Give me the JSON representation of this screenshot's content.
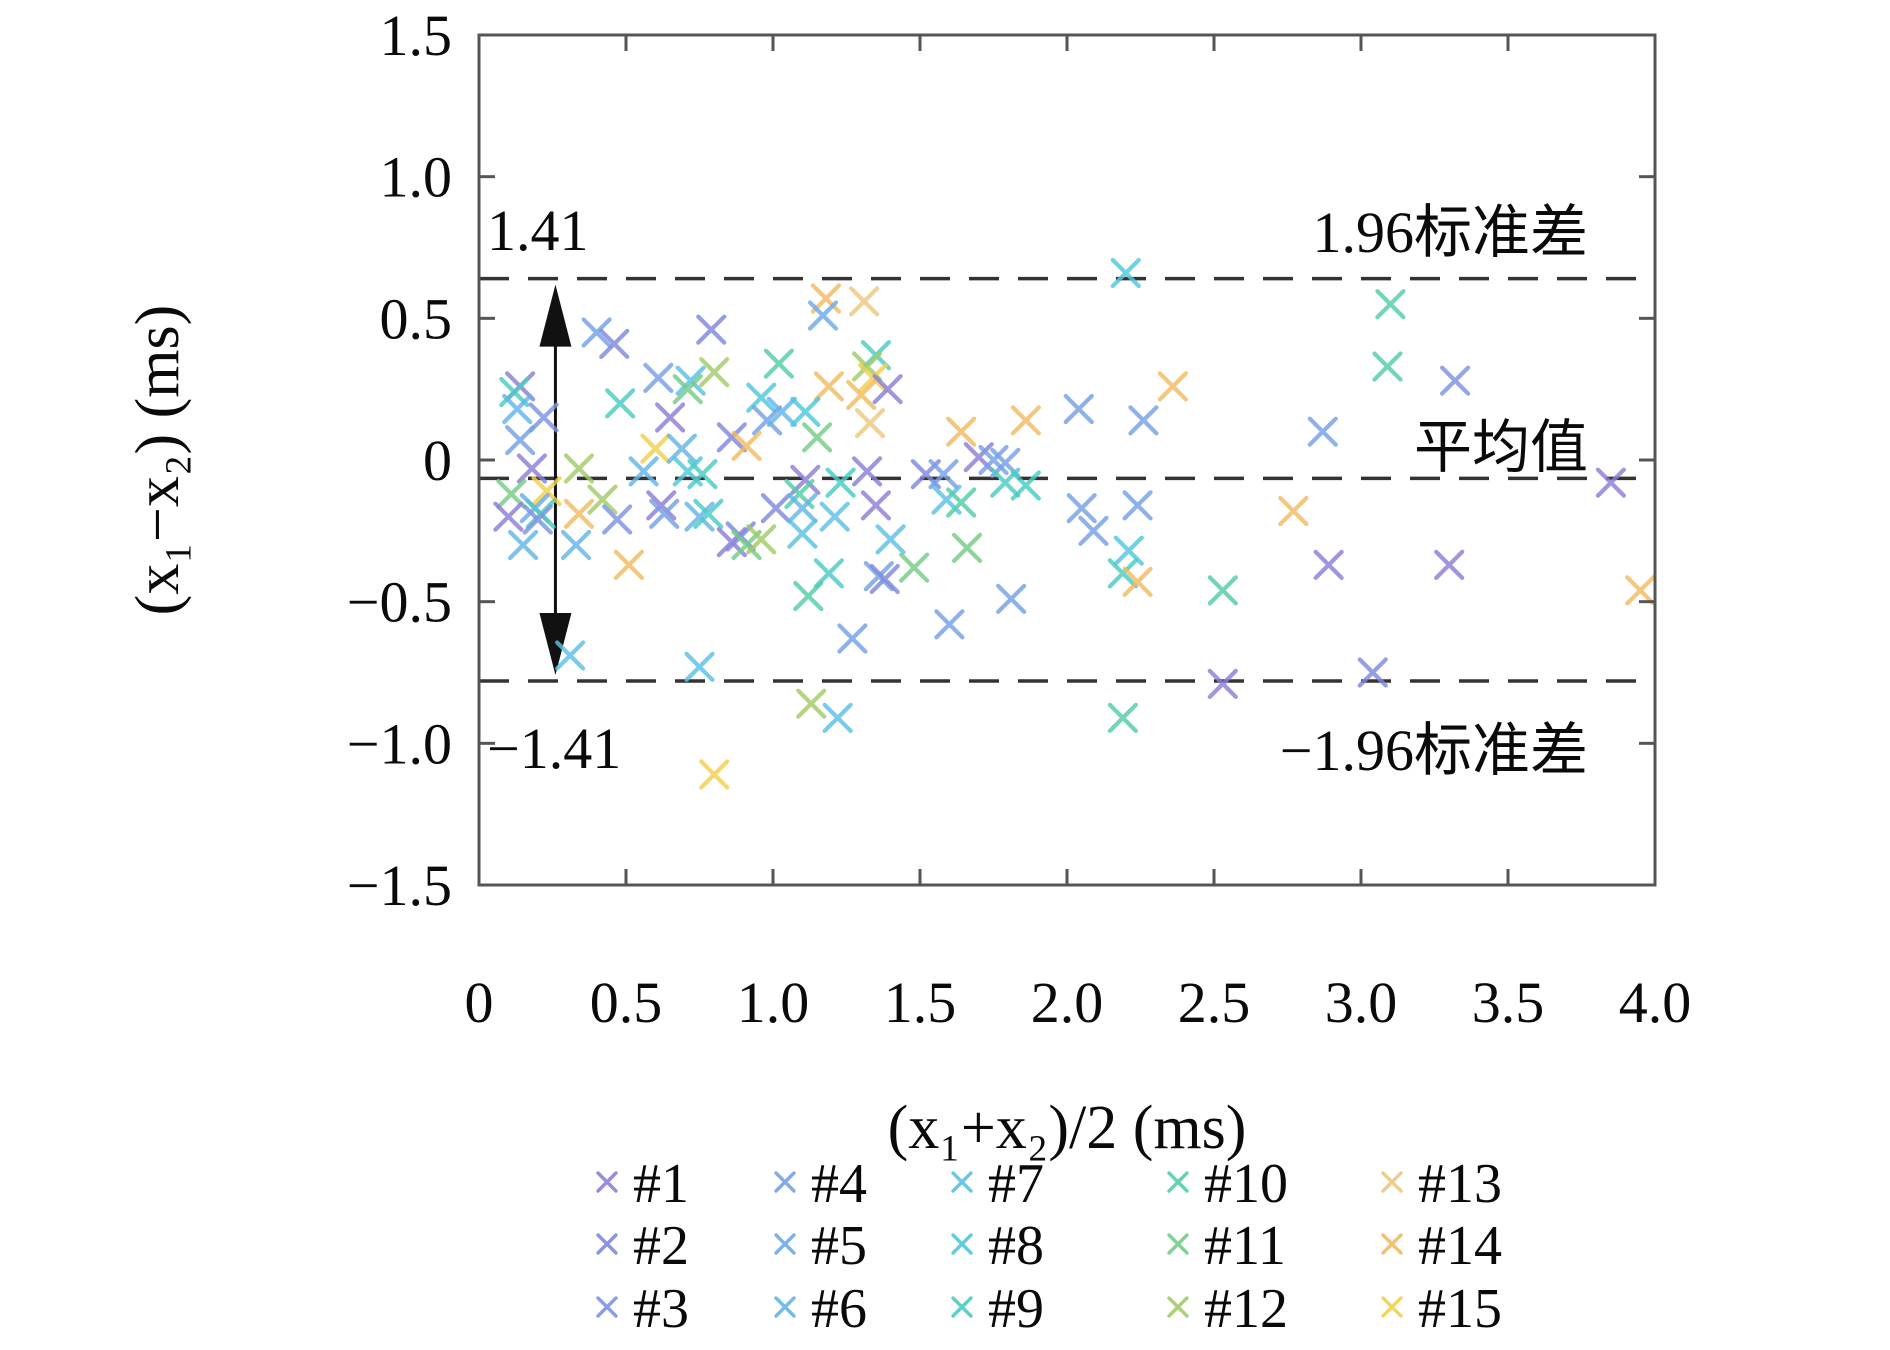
{
  "chart_data": {
    "type": "scatter",
    "title": "",
    "xlabel": "(x₁+x₂)/2 (ms)",
    "ylabel": "(x₁−x₂) (ms)",
    "xlim": [
      0,
      4.0
    ],
    "ylim": [
      -1.5,
      1.5
    ],
    "grid": false,
    "legend_position": "below",
    "marker": "x",
    "x_ticks": {
      "values": [
        0,
        0.5,
        1.0,
        1.5,
        2.0,
        2.5,
        3.0,
        3.5,
        4.0
      ],
      "labels": [
        "0",
        "0.5",
        "1.0",
        "1.5",
        "2.0",
        "2.5",
        "3.0",
        "3.5",
        "4.0"
      ]
    },
    "y_ticks": {
      "values": [
        1.5,
        1.0,
        0.5,
        0,
        -0.5,
        -1.0,
        -1.5
      ],
      "labels": [
        "1.5",
        "1.0",
        "0.5",
        "0",
        "−0.5",
        "−1.0",
        "−1.5"
      ]
    },
    "ref_lines": {
      "upper": {
        "y": 0.64,
        "label": "1.96标准差"
      },
      "mean": {
        "y": -0.065,
        "label": "平均值"
      },
      "lower": {
        "y": -0.78,
        "label": "−1.96标准差"
      }
    },
    "span_arrow": {
      "x": 0.26,
      "from": 0.64,
      "to": -0.78,
      "label_top": "1.41",
      "label_bottom": "−1.41"
    },
    "line_color": "#333333",
    "axis_color": "#555555",
    "series": [
      {
        "name": "#1",
        "color": "#8b7fd7"
      },
      {
        "name": "#2",
        "color": "#8088dd"
      },
      {
        "name": "#3",
        "color": "#7e93e2"
      },
      {
        "name": "#4",
        "color": "#75a0e7"
      },
      {
        "name": "#5",
        "color": "#6caae9"
      },
      {
        "name": "#6",
        "color": "#63b4e8"
      },
      {
        "name": "#7",
        "color": "#5bbfe4"
      },
      {
        "name": "#8",
        "color": "#4fc7da"
      },
      {
        "name": "#9",
        "color": "#49cbc3"
      },
      {
        "name": "#10",
        "color": "#52cda6"
      },
      {
        "name": "#11",
        "color": "#74cc86"
      },
      {
        "name": "#12",
        "color": "#a2cb67"
      },
      {
        "name": "#13",
        "color": "#eec77d"
      },
      {
        "name": "#14",
        "color": "#f3b961"
      },
      {
        "name": "#15",
        "color": "#f1d04b"
      }
    ],
    "points": [
      [
        0.4,
        0.45,
        3
      ],
      [
        0.46,
        0.41,
        1
      ],
      [
        0.79,
        0.46,
        1
      ],
      [
        1.18,
        0.57,
        13
      ],
      [
        1.31,
        0.56,
        12
      ],
      [
        1.17,
        0.51,
        4
      ],
      [
        0.61,
        0.29,
        3
      ],
      [
        0.72,
        0.28,
        6
      ],
      [
        0.8,
        0.31,
        11
      ],
      [
        0.71,
        0.25,
        10
      ],
      [
        1.02,
        0.34,
        9
      ],
      [
        1.35,
        0.37,
        8
      ],
      [
        1.32,
        0.33,
        11
      ],
      [
        1.34,
        0.29,
        14
      ],
      [
        1.39,
        0.25,
        0
      ],
      [
        1.3,
        0.23,
        13
      ],
      [
        1.19,
        0.26,
        13
      ],
      [
        0.96,
        0.22,
        7
      ],
      [
        0.48,
        0.2,
        8
      ],
      [
        0.14,
        0.26,
        0
      ],
      [
        0.12,
        0.24,
        8
      ],
      [
        0.13,
        0.18,
        5
      ],
      [
        0.22,
        0.15,
        2
      ],
      [
        0.65,
        0.15,
        0
      ],
      [
        0.98,
        0.14,
        3
      ],
      [
        1.03,
        0.17,
        5
      ],
      [
        1.11,
        0.17,
        7
      ],
      [
        0.14,
        0.07,
        3
      ],
      [
        0.86,
        0.08,
        1
      ],
      [
        0.91,
        0.05,
        13
      ],
      [
        1.15,
        0.08,
        10
      ],
      [
        1.33,
        0.13,
        12
      ],
      [
        1.64,
        0.1,
        13
      ],
      [
        0.6,
        0.04,
        14
      ],
      [
        0.69,
        0.04,
        5
      ],
      [
        2.2,
        0.66,
        7
      ],
      [
        3.1,
        0.55,
        9
      ],
      [
        3.09,
        0.33,
        9
      ],
      [
        3.32,
        0.28,
        2
      ],
      [
        2.36,
        0.26,
        13
      ],
      [
        2.04,
        0.18,
        3
      ],
      [
        2.26,
        0.14,
        3
      ],
      [
        2.87,
        0.1,
        3
      ],
      [
        1.86,
        0.14,
        13
      ],
      [
        1.7,
        0.01,
        0
      ],
      [
        1.75,
        0.0,
        3
      ],
      [
        1.79,
        -0.01,
        3
      ],
      [
        0.18,
        -0.03,
        0
      ],
      [
        0.34,
        -0.03,
        11
      ],
      [
        0.56,
        -0.04,
        5
      ],
      [
        0.71,
        -0.04,
        7
      ],
      [
        0.76,
        -0.05,
        8
      ],
      [
        1.11,
        -0.07,
        0
      ],
      [
        1.09,
        -0.12,
        9
      ],
      [
        1.23,
        -0.08,
        8
      ],
      [
        1.32,
        -0.04,
        0
      ],
      [
        1.52,
        -0.05,
        1
      ],
      [
        1.58,
        -0.05,
        3
      ],
      [
        0.11,
        -0.12,
        10
      ],
      [
        0.23,
        -0.11,
        14
      ],
      [
        0.19,
        -0.17,
        4
      ],
      [
        0.21,
        -0.19,
        8
      ],
      [
        0.1,
        -0.2,
        0
      ],
      [
        0.2,
        -0.21,
        2
      ],
      [
        0.34,
        -0.19,
        13
      ],
      [
        0.42,
        -0.14,
        11
      ],
      [
        0.47,
        -0.21,
        2
      ],
      [
        0.62,
        -0.16,
        0
      ],
      [
        0.63,
        -0.19,
        3
      ],
      [
        0.75,
        -0.2,
        5
      ],
      [
        0.78,
        -0.19,
        8
      ],
      [
        1.01,
        -0.17,
        1
      ],
      [
        1.1,
        -0.17,
        5
      ],
      [
        1.21,
        -0.2,
        6
      ],
      [
        1.35,
        -0.16,
        0
      ],
      [
        1.59,
        -0.14,
        6
      ],
      [
        1.64,
        -0.15,
        9
      ],
      [
        1.79,
        -0.08,
        8
      ],
      [
        1.86,
        -0.09,
        8
      ],
      [
        0.15,
        -0.3,
        5
      ],
      [
        0.33,
        -0.3,
        5
      ],
      [
        0.86,
        -0.29,
        0
      ],
      [
        0.89,
        -0.27,
        1
      ],
      [
        0.91,
        -0.3,
        10
      ],
      [
        0.96,
        -0.28,
        11
      ],
      [
        1.1,
        -0.26,
        6
      ],
      [
        1.4,
        -0.28,
        6
      ],
      [
        1.66,
        -0.31,
        10
      ],
      [
        2.05,
        -0.17,
        3
      ],
      [
        2.09,
        -0.25,
        3
      ],
      [
        2.24,
        -0.16,
        3
      ],
      [
        2.21,
        -0.32,
        7
      ],
      [
        0.51,
        -0.37,
        13
      ],
      [
        1.19,
        -0.4,
        8
      ],
      [
        1.36,
        -0.41,
        3
      ],
      [
        1.38,
        -0.42,
        1
      ],
      [
        1.48,
        -0.38,
        10
      ],
      [
        2.19,
        -0.4,
        8
      ],
      [
        2.24,
        -0.43,
        13
      ],
      [
        1.12,
        -0.48,
        9
      ],
      [
        2.53,
        -0.46,
        9
      ],
      [
        1.27,
        -0.63,
        3
      ],
      [
        1.6,
        -0.58,
        3
      ],
      [
        1.81,
        -0.49,
        3
      ],
      [
        0.31,
        -0.69,
        6
      ],
      [
        0.75,
        -0.73,
        6
      ],
      [
        2.77,
        -0.18,
        13
      ],
      [
        2.89,
        -0.37,
        0
      ],
      [
        3.3,
        -0.37,
        0
      ],
      [
        3.04,
        -0.75,
        1
      ],
      [
        2.53,
        -0.79,
        0
      ],
      [
        1.13,
        -0.86,
        11
      ],
      [
        1.22,
        -0.91,
        6
      ],
      [
        2.19,
        -0.91,
        9
      ],
      [
        0.8,
        -1.11,
        14
      ],
      [
        3.85,
        -0.08,
        0
      ],
      [
        3.95,
        -0.46,
        13
      ]
    ]
  }
}
